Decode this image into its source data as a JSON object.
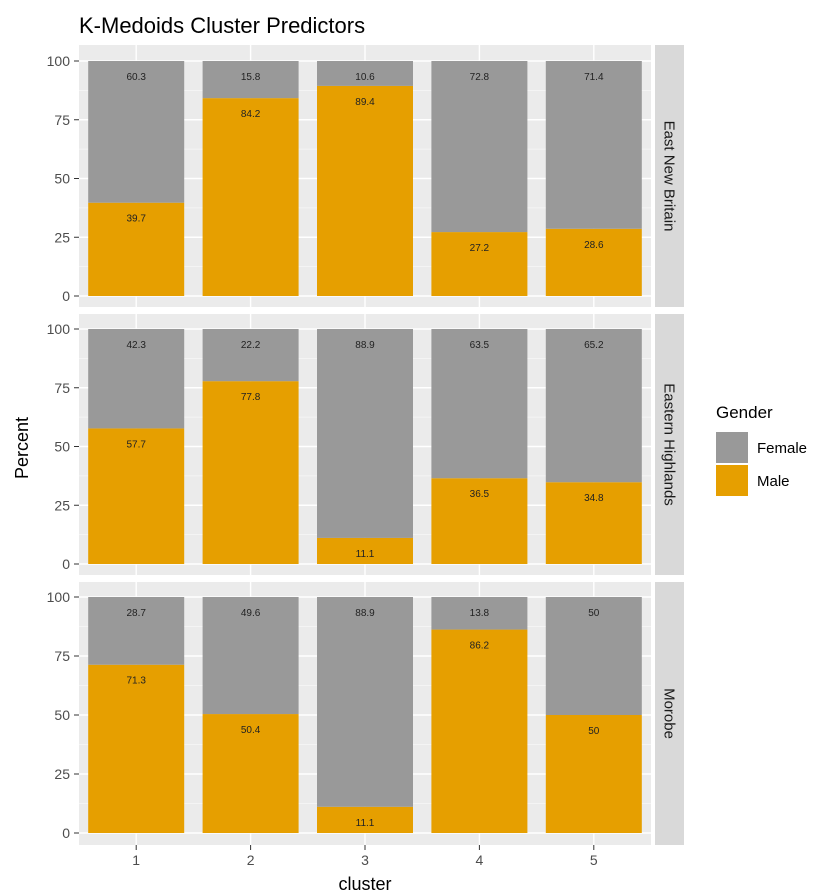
{
  "chart_data": {
    "type": "bar",
    "stacked": true,
    "title": "K-Medoids Cluster Predictors",
    "xlabel": "cluster",
    "ylabel": "Percent",
    "ylim": [
      0,
      100
    ],
    "yticks": [
      0,
      25,
      50,
      75,
      100
    ],
    "categories": [
      "1",
      "2",
      "3",
      "4",
      "5"
    ],
    "legend": {
      "title": "Gender",
      "position": "right",
      "entries": [
        "Female",
        "Male"
      ]
    },
    "colors": {
      "Female": "#999999",
      "Male": "#E69F00"
    },
    "panels": [
      {
        "label": "East New Britain",
        "series": [
          {
            "name": "Male",
            "values": [
              39.7,
              84.2,
              89.4,
              27.2,
              28.6
            ]
          },
          {
            "name": "Female",
            "values": [
              60.3,
              15.8,
              10.6,
              72.8,
              71.4
            ]
          }
        ]
      },
      {
        "label": "Eastern Highlands",
        "series": [
          {
            "name": "Male",
            "values": [
              57.7,
              77.8,
              11.1,
              36.5,
              34.8
            ]
          },
          {
            "name": "Female",
            "values": [
              42.3,
              22.2,
              88.9,
              63.5,
              65.2
            ]
          }
        ]
      },
      {
        "label": "Morobe",
        "series": [
          {
            "name": "Male",
            "values": [
              71.3,
              50.4,
              11.1,
              86.2,
              50
            ]
          },
          {
            "name": "Female",
            "values": [
              28.7,
              49.6,
              88.9,
              13.8,
              50
            ]
          }
        ]
      }
    ]
  }
}
